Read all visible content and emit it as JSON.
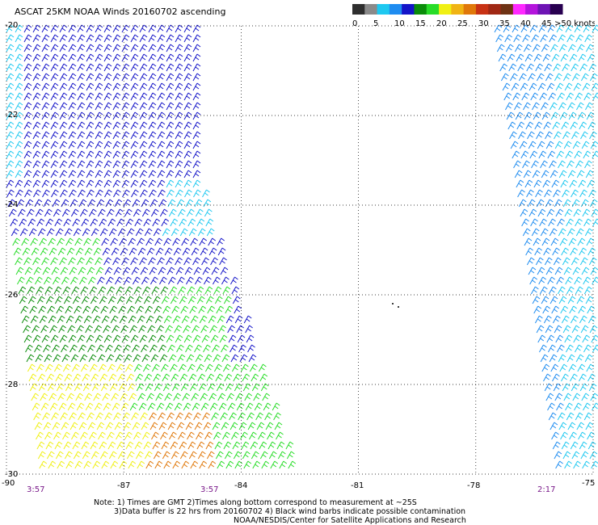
{
  "title": "ASCAT 25KM NOAA Winds 20160702 ascending",
  "colorbar": {
    "labels": [
      "0",
      "5",
      "10",
      "15",
      "20",
      "25",
      "30",
      "35",
      "40",
      "45",
      ">50 knots"
    ],
    "colors": [
      "#2e2e2e",
      "#8a8a8a",
      "#1ec8f0",
      "#1e8cf0",
      "#1414c8",
      "#0a8c0a",
      "#28dc28",
      "#f0f014",
      "#f0b414",
      "#e0780a",
      "#c83214",
      "#a02814",
      "#6e3214",
      "#ff28ff",
      "#b414dc",
      "#6e14b4",
      "#280050"
    ]
  },
  "axes": {
    "lat_labels": [
      "-20",
      "-22",
      "-24",
      "-26",
      "-28",
      "-30"
    ],
    "lon_labels": [
      "-90",
      "-87",
      "-84",
      "-81",
      "-78",
      "-75"
    ]
  },
  "pass_times": [
    "3:57",
    "3:57",
    "2:17"
  ],
  "notes": [
    "Note: 1) Times are GMT 2)Times along bottom correspond to measurement at ~25S",
    "3)Data buffer is 22 hrs from 20160702 4) Black wind barbs indicate possible contamination",
    "NOAA/NESDIS/Center for Satellite Applications and Research"
  ]
}
